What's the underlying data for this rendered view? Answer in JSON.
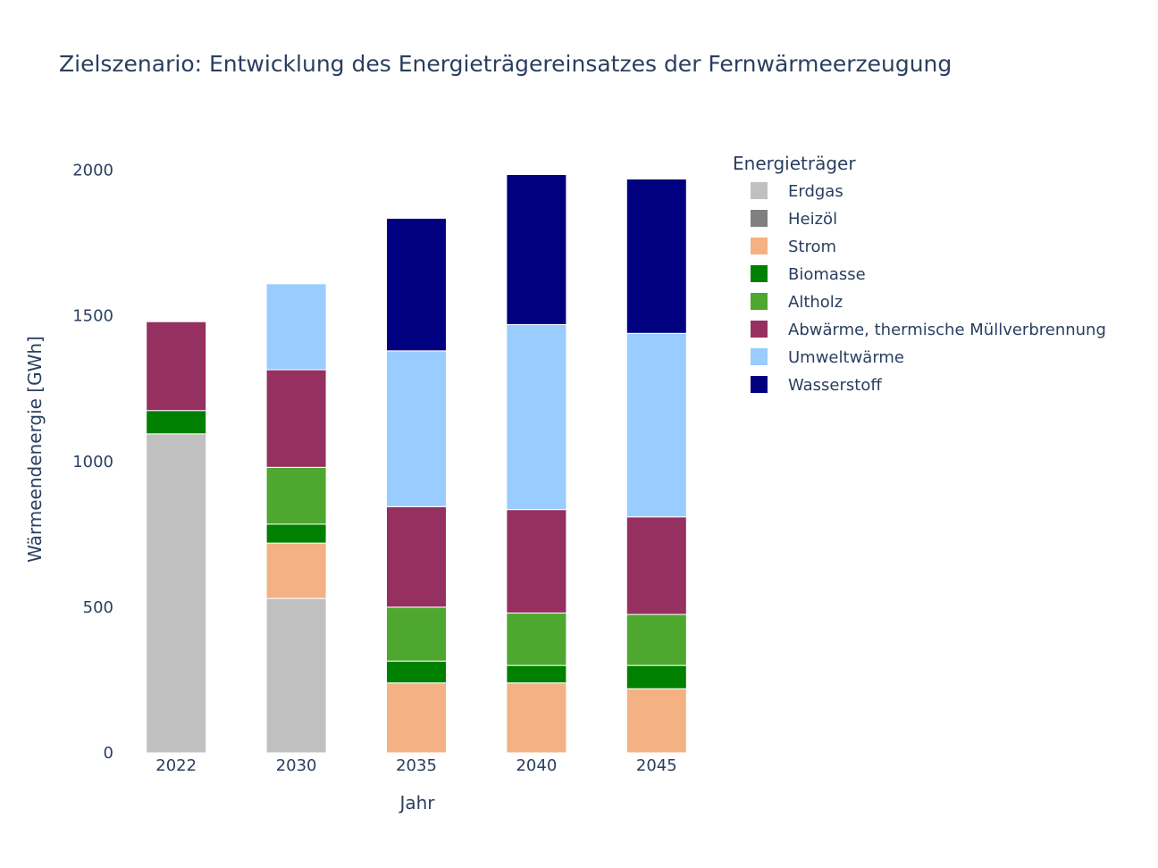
{
  "chart_data": {
    "type": "bar",
    "stacked": true,
    "title": "Zielszenario: Entwicklung des Energieträgereinsatzes der Fernwärmeerzeugung",
    "xlabel": "Jahr",
    "ylabel": "Wärmeendenergie [GWh]",
    "categories": [
      "2022",
      "2030",
      "2035",
      "2040",
      "2045"
    ],
    "ylim": [
      0,
      2100
    ],
    "yticks": [
      0,
      500,
      1000,
      1500,
      2000
    ],
    "legend_title": "Energieträger",
    "legend_position": "right",
    "grid": false,
    "series": [
      {
        "name": "Erdgas",
        "color": "#c0c0c0",
        "values": [
          1095,
          530,
          0,
          0,
          0
        ]
      },
      {
        "name": "Heizöl",
        "color": "#808080",
        "values": [
          0,
          0,
          0,
          0,
          0
        ]
      },
      {
        "name": "Strom",
        "color": "#f4b183",
        "values": [
          0,
          190,
          240,
          240,
          220
        ]
      },
      {
        "name": "Biomasse",
        "color": "#008000",
        "values": [
          80,
          65,
          75,
          60,
          80
        ]
      },
      {
        "name": "Altholz",
        "color": "#4ea72e",
        "values": [
          0,
          195,
          185,
          180,
          175
        ]
      },
      {
        "name": "Abwärme, thermische Müllverbrennung",
        "color": "#963061",
        "values": [
          305,
          335,
          345,
          355,
          335
        ]
      },
      {
        "name": "Umweltwärme",
        "color": "#99ccff",
        "values": [
          0,
          295,
          535,
          635,
          630
        ]
      },
      {
        "name": "Wasserstoff",
        "color": "#000080",
        "values": [
          0,
          0,
          455,
          515,
          530
        ]
      }
    ]
  }
}
